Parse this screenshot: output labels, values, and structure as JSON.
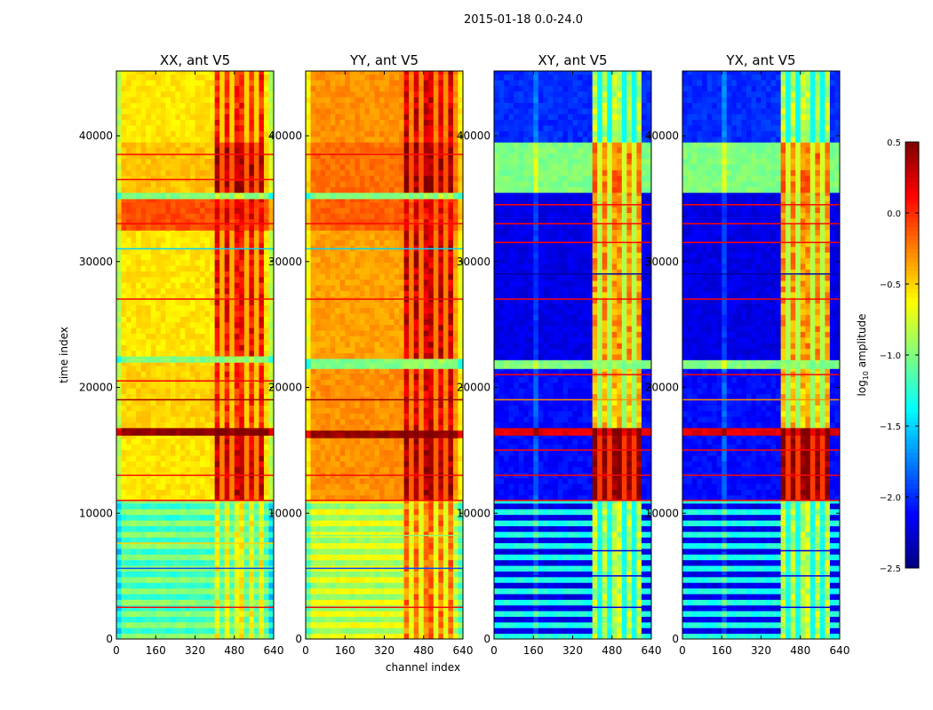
{
  "chart_data": {
    "type": "heatmap",
    "title": "2015-01-18 0.0-24.0",
    "xlabel": "channel index",
    "ylabel": "time index",
    "xlim": [
      0,
      640
    ],
    "ylim": [
      0,
      45150
    ],
    "xticks": [
      0,
      160,
      320,
      480,
      640
    ],
    "yticks": [
      0,
      10000,
      20000,
      30000,
      40000
    ],
    "colorbar": {
      "label": "log10 amplitude",
      "label_base": "log",
      "label_sub": "10",
      "label_rest": " amplitude",
      "range": [
        -2.5,
        0.5
      ],
      "ticks": [
        "0.5",
        "0.0",
        "−0.5",
        "−1.0",
        "−1.5",
        "−2.0",
        "−2.5"
      ],
      "tick_values": [
        0.5,
        0,
        -0.5,
        -1,
        -1.5,
        -2,
        -2.5
      ],
      "colormap": "jet"
    },
    "rfi_channels": [
      400,
      600
    ],
    "panels": [
      {
        "title": "XX, ant V5",
        "type": "parallel",
        "bands": [
          [
            0,
            11000,
            -0.95,
            -0.75
          ],
          [
            11000,
            16200,
            -0.55,
            0.2
          ],
          [
            16200,
            16800,
            0.45,
            0.45
          ],
          [
            16800,
            22000,
            -0.5,
            -0.05
          ],
          [
            22000,
            22500,
            -1.0,
            -1.0
          ],
          [
            22500,
            32500,
            -0.55,
            0.05
          ],
          [
            32500,
            35000,
            -0.1,
            0.05
          ],
          [
            35000,
            35500,
            -1.0,
            -1.0
          ],
          [
            35500,
            39500,
            -0.45,
            0.3
          ],
          [
            39500,
            45150,
            -0.55,
            -0.05
          ]
        ],
        "lines": [
          [
            2500,
            0.1
          ],
          [
            5600,
            -1.9
          ],
          [
            7600,
            -0.5
          ],
          [
            11000,
            0.1
          ],
          [
            13000,
            0.1
          ],
          [
            19000,
            0.4
          ],
          [
            20500,
            0.1
          ],
          [
            27000,
            0.1
          ],
          [
            31000,
            -1.5
          ],
          [
            33000,
            0.1
          ],
          [
            36500,
            0.1
          ],
          [
            38500,
            0.1
          ]
        ]
      },
      {
        "title": "YY, ant V5",
        "type": "parallel",
        "bands": [
          [
            0,
            11000,
            -0.65,
            -0.3
          ],
          [
            11000,
            16000,
            -0.3,
            0.3
          ],
          [
            16000,
            16600,
            0.45,
            0.45
          ],
          [
            16600,
            21500,
            -0.3,
            0.15
          ],
          [
            21500,
            22300,
            -1.0,
            -1.0
          ],
          [
            22300,
            32500,
            -0.35,
            0.2
          ],
          [
            32500,
            35000,
            -0.15,
            0.05
          ],
          [
            35000,
            35500,
            -1.0,
            -1.0
          ],
          [
            35500,
            39500,
            -0.2,
            0.35
          ],
          [
            39500,
            45150,
            -0.3,
            0.15
          ]
        ],
        "lines": [
          [
            2500,
            0.1
          ],
          [
            5600,
            -1.9
          ],
          [
            8200,
            -1.0
          ],
          [
            11000,
            0.1
          ],
          [
            13000,
            0.1
          ],
          [
            19000,
            0.4
          ],
          [
            27000,
            0.1
          ],
          [
            31000,
            -1.5
          ],
          [
            33000,
            0.1
          ],
          [
            38500,
            0.1
          ]
        ]
      },
      {
        "title": "XY, ant V5",
        "type": "cross",
        "bands": [
          [
            0,
            11000,
            -1.3,
            -0.9
          ],
          [
            11000,
            16200,
            -2.1,
            0.4
          ],
          [
            16200,
            16800,
            0.2,
            0.45
          ],
          [
            16800,
            21500,
            -2.1,
            -0.5
          ],
          [
            21500,
            22200,
            -1.0,
            -1.0
          ],
          [
            22200,
            35500,
            -2.2,
            -0.4
          ],
          [
            35500,
            39500,
            -1.0,
            -0.3
          ],
          [
            39500,
            45150,
            -2.0,
            -0.9
          ]
        ],
        "lines": [
          [
            2500,
            -2.2
          ],
          [
            5000,
            -2.2
          ],
          [
            7000,
            -2.2
          ],
          [
            11000,
            0.1
          ],
          [
            13000,
            0.1
          ],
          [
            15000,
            0.1
          ],
          [
            19000,
            -0.3
          ],
          [
            21000,
            0.1
          ],
          [
            27000,
            0.1
          ],
          [
            29000,
            -2.4
          ],
          [
            31500,
            0.1
          ],
          [
            33000,
            0.1
          ],
          [
            34500,
            0.1
          ]
        ]
      },
      {
        "title": "YX, ant V5",
        "type": "cross",
        "bands": [
          [
            0,
            11000,
            -1.3,
            -0.9
          ],
          [
            11000,
            16200,
            -2.1,
            0.4
          ],
          [
            16200,
            16800,
            0.2,
            0.45
          ],
          [
            16800,
            21500,
            -2.1,
            -0.5
          ],
          [
            21500,
            22200,
            -1.0,
            -1.0
          ],
          [
            22200,
            35500,
            -2.2,
            -0.4
          ],
          [
            35500,
            39500,
            -1.0,
            -0.3
          ],
          [
            39500,
            45150,
            -2.0,
            -0.9
          ]
        ],
        "lines": [
          [
            2500,
            -2.2
          ],
          [
            5000,
            -2.2
          ],
          [
            7000,
            -2.2
          ],
          [
            11000,
            0.1
          ],
          [
            13000,
            0.1
          ],
          [
            15000,
            0.1
          ],
          [
            19000,
            -0.3
          ],
          [
            21000,
            0.1
          ],
          [
            27000,
            0.1
          ],
          [
            29000,
            -2.4
          ],
          [
            31500,
            0.1
          ],
          [
            33000,
            0.1
          ],
          [
            34500,
            0.1
          ]
        ]
      }
    ]
  }
}
